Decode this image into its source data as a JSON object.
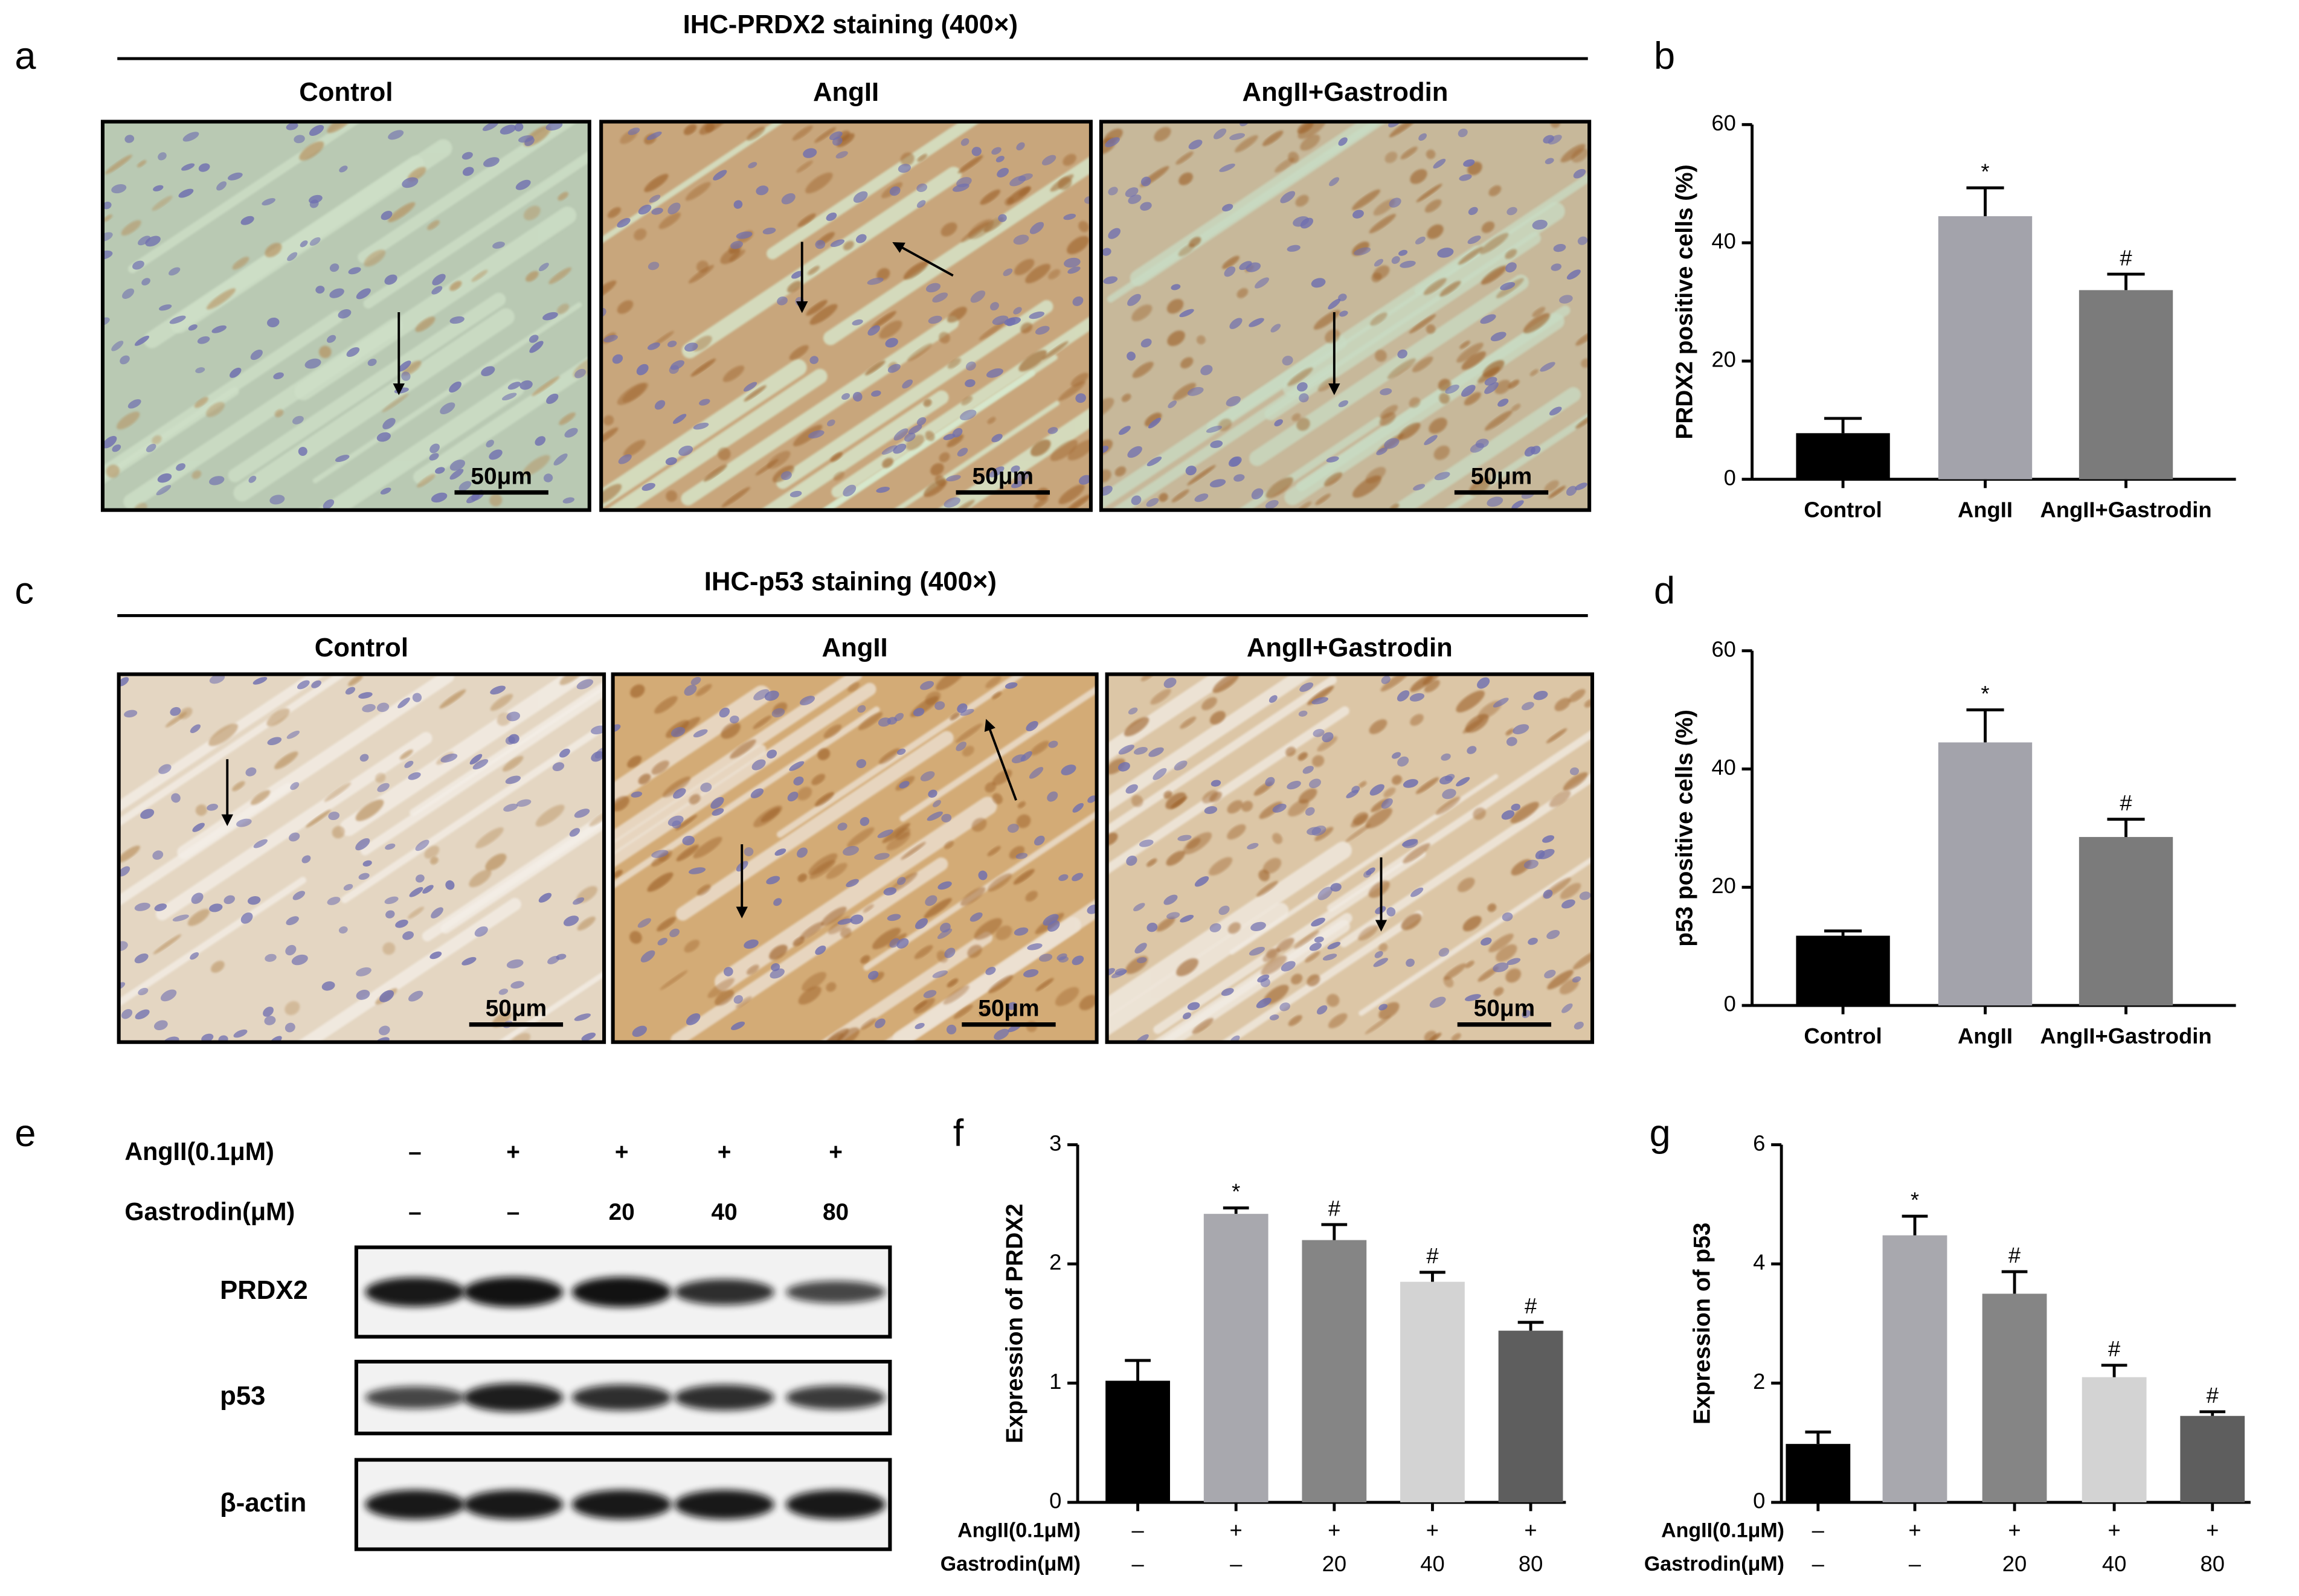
{
  "panel_labels": [
    "a",
    "b",
    "c",
    "d",
    "e",
    "f",
    "g"
  ],
  "ihc": [
    {
      "title": "IHC-PRDX2 staining (400×)",
      "groups": [
        "Control",
        "AngII",
        "AngII+Gastrodin"
      ],
      "scale_bar": "50μm"
    },
    {
      "title": "IHC-p53 staining (400×)",
      "groups": [
        "Control",
        "AngII",
        "AngII+Gastrodin"
      ],
      "scale_bar": "50μm"
    }
  ],
  "western_blot": {
    "treatment_rows": [
      {
        "label": "AngII(0.1μM)",
        "marks": [
          "–",
          "+",
          "+",
          "+",
          "+"
        ]
      },
      {
        "label": "Gastrodin(μM)",
        "marks": [
          "–",
          "–",
          "20",
          "40",
          "80"
        ]
      }
    ],
    "bands": [
      "PRDX2",
      "p53",
      "β-actin"
    ]
  },
  "chart_data": [
    {
      "type": "bar",
      "y_label": "PRDX2 positive cells (%)",
      "categories": [
        "Control",
        "AngII",
        "AngII+Gastrodin"
      ],
      "values": [
        7.8,
        44.5,
        32
      ],
      "errors": [
        2.5,
        4.8,
        2.7
      ],
      "annotations": [
        null,
        "*",
        "#"
      ],
      "colors": [
        "#000000",
        "#a3a3ab",
        "#7b7b7b"
      ],
      "ylim": [
        0,
        60
      ],
      "yticks": [
        0,
        20,
        40,
        60
      ]
    },
    {
      "type": "bar",
      "y_label": "p53 positive cells (%)",
      "categories": [
        "Control",
        "AngII",
        "AngII+Gastrodin"
      ],
      "values": [
        11.8,
        44.5,
        28.5
      ],
      "errors": [
        0.8,
        5.5,
        3
      ],
      "annotations": [
        null,
        "*",
        "#"
      ],
      "colors": [
        "#000000",
        "#a3a3ab",
        "#7b7b7b"
      ],
      "ylim": [
        0,
        60
      ],
      "yticks": [
        0,
        20,
        40,
        60
      ]
    },
    {
      "type": "bar",
      "y_label": "Expression of PRDX2",
      "categories": [
        null,
        null,
        null,
        null,
        null
      ],
      "x_rows": [
        {
          "label": "AngII(0.1μM)",
          "marks": [
            "–",
            "+",
            "+",
            "+",
            "+"
          ]
        },
        {
          "label": "Gastrodin(μM)",
          "marks": [
            "–",
            "–",
            "20",
            "40",
            "80"
          ]
        }
      ],
      "values": [
        1.02,
        2.42,
        2.2,
        1.85,
        1.44
      ],
      "errors": [
        0.17,
        0.05,
        0.13,
        0.08,
        0.07
      ],
      "annotations": [
        null,
        "*",
        "#",
        "#",
        "#"
      ],
      "colors": [
        "#000000",
        "#a8a8ae",
        "#858585",
        "#d3d3d3",
        "#5e5e5e"
      ],
      "ylim": [
        0,
        3
      ],
      "yticks": [
        0,
        1,
        2,
        3
      ]
    },
    {
      "type": "bar",
      "y_label": "Expression of p53",
      "categories": [
        null,
        null,
        null,
        null,
        null
      ],
      "x_rows": [
        {
          "label": "AngII(0.1μM)",
          "marks": [
            "–",
            "+",
            "+",
            "+",
            "+"
          ]
        },
        {
          "label": "Gastrodin(μM)",
          "marks": [
            "–",
            "–",
            "20",
            "40",
            "80"
          ]
        }
      ],
      "values": [
        0.98,
        4.48,
        3.5,
        2.1,
        1.45
      ],
      "errors": [
        0.2,
        0.32,
        0.37,
        0.2,
        0.07
      ],
      "annotations": [
        null,
        "*",
        "#",
        "#",
        "#"
      ],
      "colors": [
        "#000000",
        "#a8a8ae",
        "#858585",
        "#d3d3d3",
        "#5e5e5e"
      ],
      "ylim": [
        0,
        6
      ],
      "yticks": [
        0,
        2,
        4,
        6
      ]
    }
  ]
}
